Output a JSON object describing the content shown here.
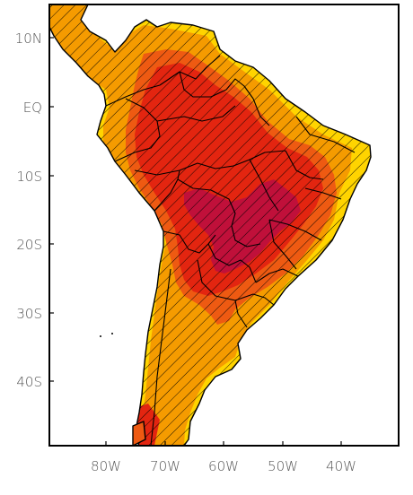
{
  "map": {
    "lat_ticks": [
      "10N",
      "EQ",
      "10S",
      "20S",
      "30S",
      "40S"
    ],
    "lon_ticks": [
      "80W",
      "70W",
      "60W",
      "50W",
      "40W"
    ],
    "colors": {
      "level_1": "#ffd400",
      "level_2": "#f59b00",
      "level_3": "#ee5a12",
      "level_4": "#e32510",
      "level_5": "#c0103a",
      "hatch": "#000000",
      "frame": "#000000"
    },
    "hatching": "diagonal lines over land",
    "region": "South America"
  }
}
